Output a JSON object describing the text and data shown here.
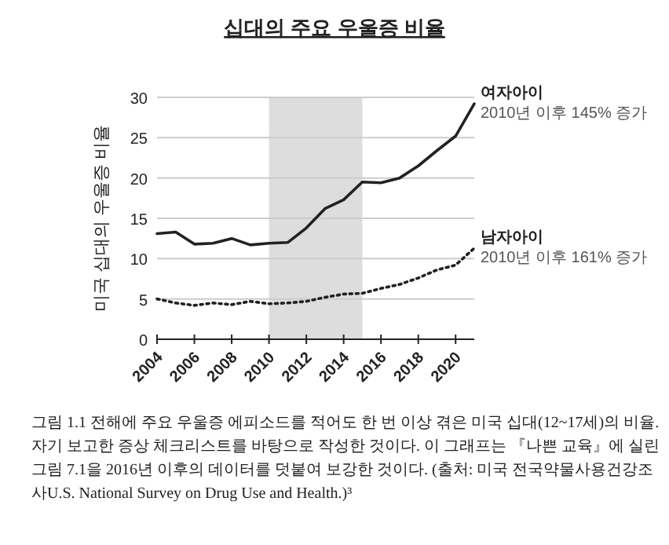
{
  "chart_data": {
    "type": "line",
    "title": "십대의 주요 우울증 비율",
    "ylabel": "미국 십대의 우울증 비율",
    "x": [
      2004,
      2005,
      2006,
      2007,
      2008,
      2009,
      2010,
      2011,
      2012,
      2013,
      2014,
      2015,
      2016,
      2017,
      2018,
      2019,
      2020,
      2021
    ],
    "series": [
      {
        "name": "여자아이",
        "color": "#222222",
        "line_style": "solid",
        "values": [
          13.1,
          13.3,
          11.8,
          11.9,
          12.5,
          11.7,
          11.9,
          12.0,
          13.8,
          16.2,
          17.3,
          19.5,
          19.4,
          20.0,
          21.5,
          23.4,
          25.2,
          29.2
        ]
      },
      {
        "name": "남자아이",
        "color": "#222222",
        "line_style": "dotted",
        "values": [
          5.0,
          4.5,
          4.2,
          4.5,
          4.3,
          4.7,
          4.4,
          4.5,
          4.7,
          5.2,
          5.6,
          5.7,
          6.3,
          6.8,
          7.6,
          8.6,
          9.2,
          11.3
        ]
      }
    ],
    "xlim": [
      2004,
      2021
    ],
    "xticks": [
      2004,
      2006,
      2008,
      2010,
      2012,
      2014,
      2016,
      2018,
      2020
    ],
    "ylim": [
      0,
      30
    ],
    "yticks": [
      0,
      5,
      10,
      15,
      20,
      25,
      30
    ],
    "grid": "y",
    "marker": "none",
    "bands": [
      {
        "axis": "x",
        "from": 2010,
        "to": 2015,
        "color": "#dddddd"
      }
    ],
    "annotations": [
      {
        "text": "2010년 이후 145% 증가",
        "x": 2021,
        "y": 29.2
      },
      {
        "text": "2010년 이후 161% 증가",
        "x": 2021,
        "y": 11.3
      },
      "그림 1.1  전해에 주요 우울증 에피소드를 적어도 한 번 이상 겪은 미국 십대(12~17세)의 비율. 자기 보고한 증상 체크리스트를 바탕으로 작성한 것이다. 이 그래프는 『나쁜 교육』에 실린 그림 7.1을 2016년 이후의 데이터를 덧붙여 보강한 것이다. (출처: 미국 전국약물사용건강조사U.S. National Survey on Drug Use and Health.)³"
    ]
  }
}
